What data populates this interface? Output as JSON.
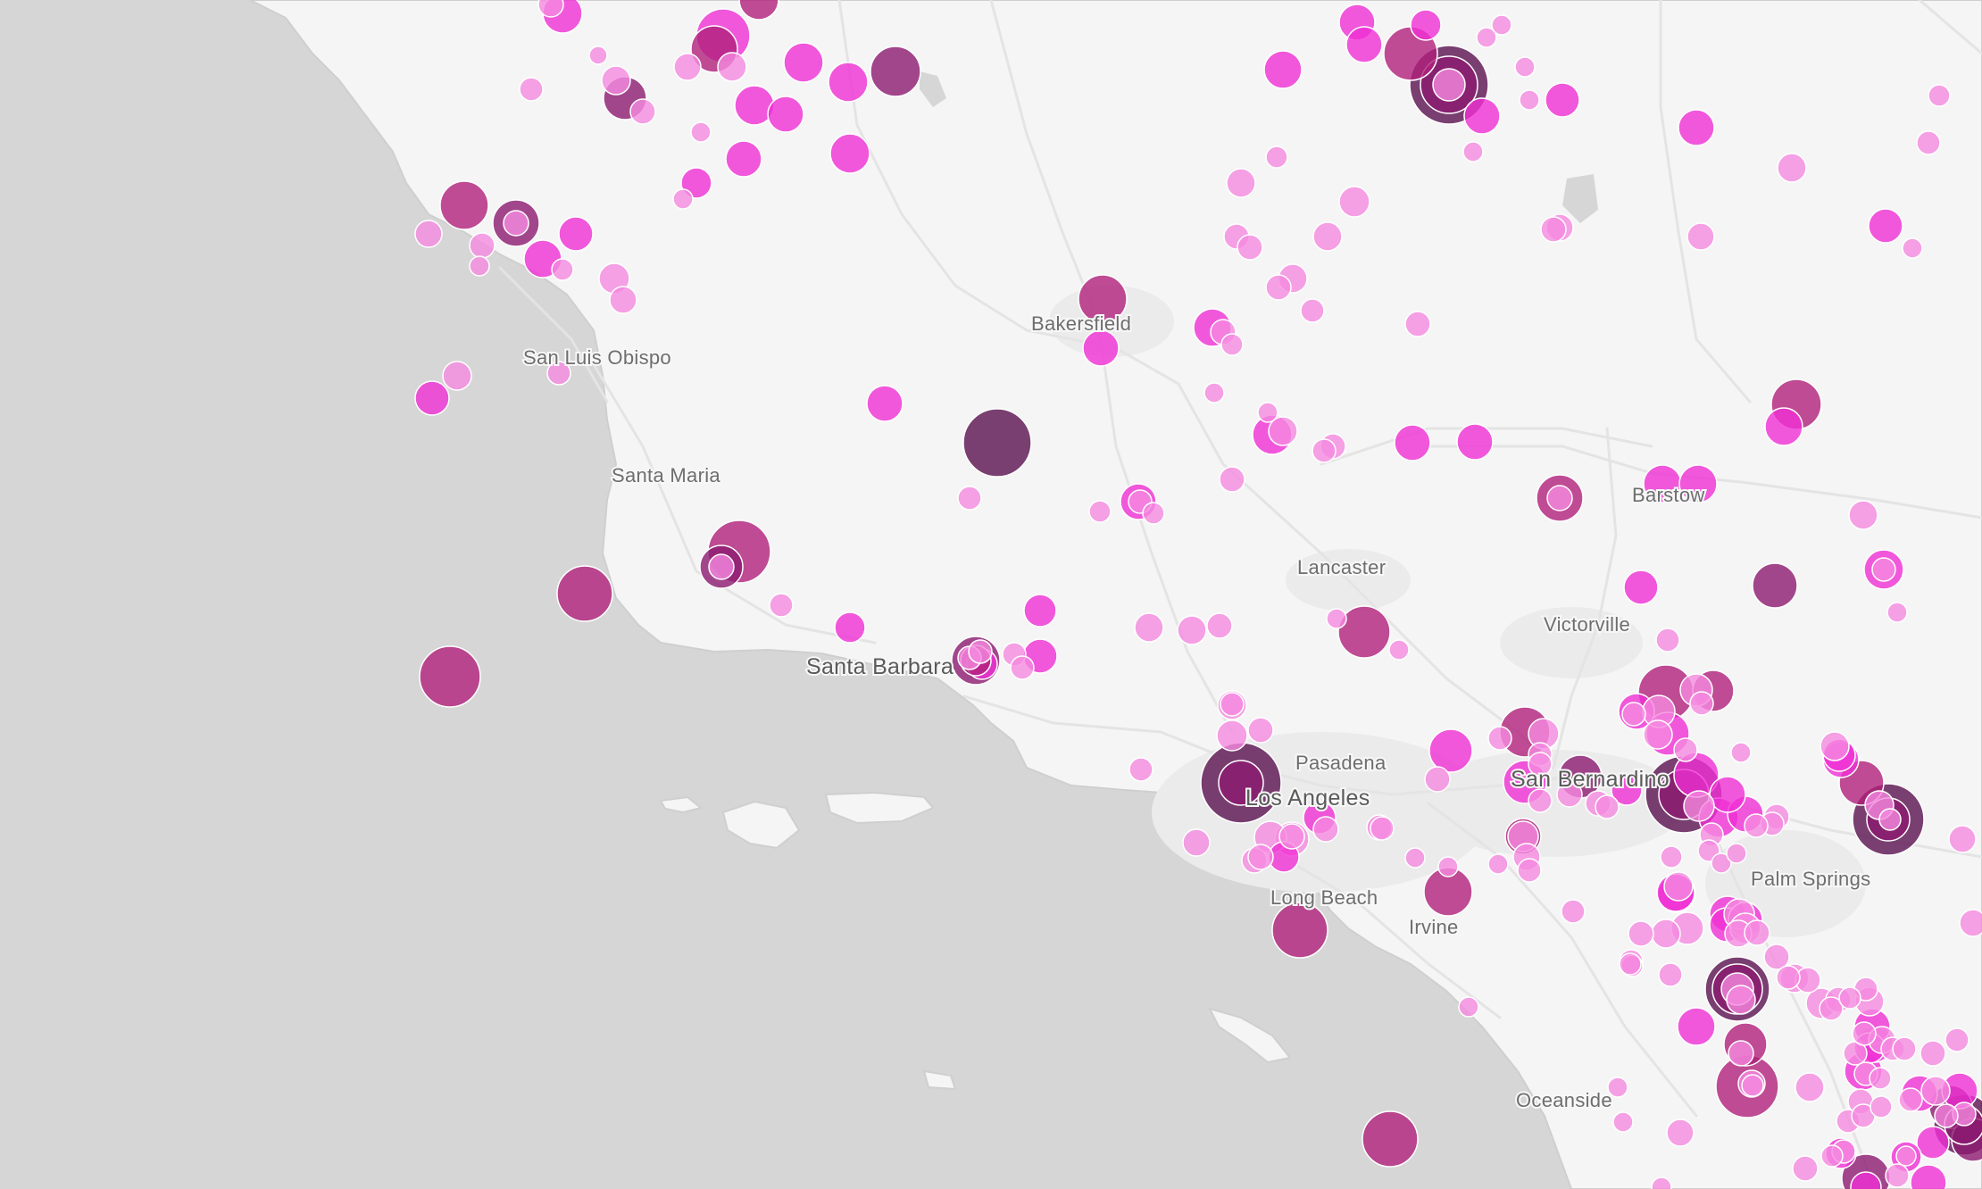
{
  "map": {
    "colors": {
      "water": "#d6d6d6",
      "land": "#f5f5f5",
      "roads": "#e6e6e6",
      "cities": "#ebebeb",
      "label": "#6e6e6e"
    },
    "cities": [
      {
        "name": "Bakersfield",
        "major": false
      },
      {
        "name": "San Luis Obispo",
        "major": false
      },
      {
        "name": "Santa Maria",
        "major": false
      },
      {
        "name": "Lancaster",
        "major": false
      },
      {
        "name": "Barstow",
        "major": false
      },
      {
        "name": "Victorville",
        "major": false
      },
      {
        "name": "Santa Barbara",
        "major": true
      },
      {
        "name": "Pasadena",
        "major": false
      },
      {
        "name": "San Bernardino",
        "major": true
      },
      {
        "name": "Los Angeles",
        "major": true
      },
      {
        "name": "Palm Springs",
        "major": false
      },
      {
        "name": "Long Beach",
        "major": false
      },
      {
        "name": "Irvine",
        "major": false
      },
      {
        "name": "Oceanside",
        "major": false
      }
    ],
    "magnitude_colors": {
      "low": "#f58ae0",
      "mid": "#f02fd4",
      "high": "#b0207a",
      "very_high": "#8c1a70",
      "max": "#5a1250"
    }
  }
}
